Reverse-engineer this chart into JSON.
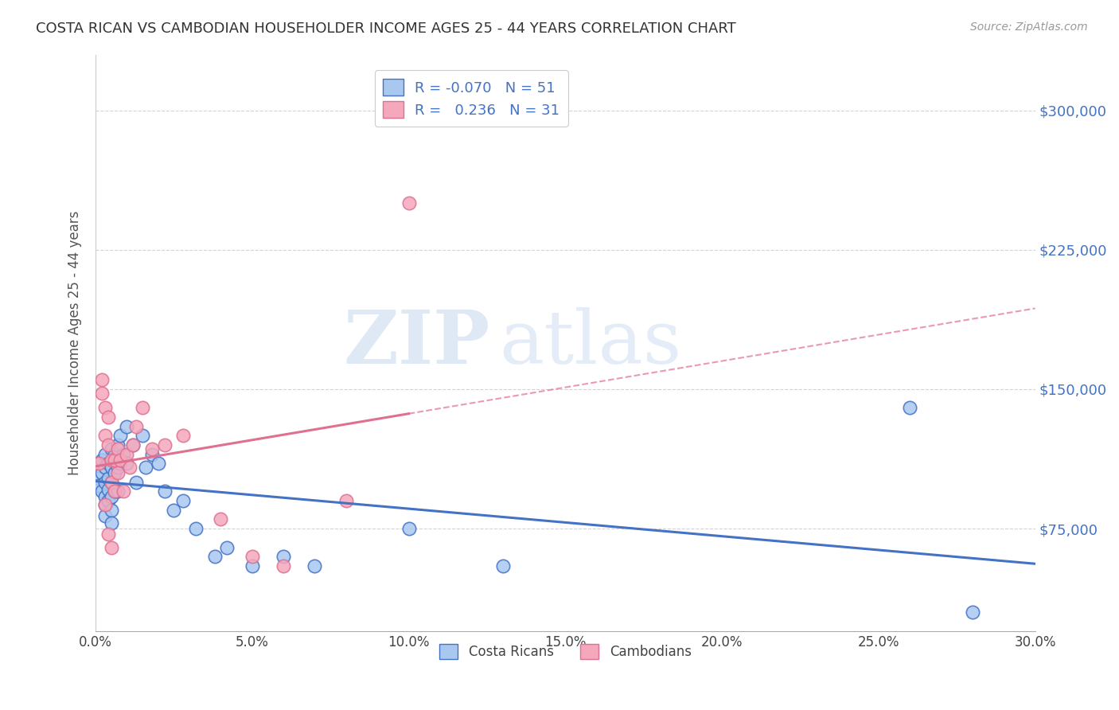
{
  "title": "COSTA RICAN VS CAMBODIAN HOUSEHOLDER INCOME AGES 25 - 44 YEARS CORRELATION CHART",
  "source": "Source: ZipAtlas.com",
  "ylabel": "Householder Income Ages 25 - 44 years",
  "ytick_values": [
    75000,
    150000,
    225000,
    300000
  ],
  "xlim": [
    0.0,
    0.3
  ],
  "ylim": [
    20000,
    330000
  ],
  "R_cr": -0.07,
  "N_cr": 51,
  "R_cam": 0.236,
  "N_cam": 31,
  "costa_rican_color": "#a8c8f0",
  "cambodian_color": "#f5a8bc",
  "costa_rican_line_color": "#4472c4",
  "cambodian_line_color": "#e07090",
  "watermark_zip": "ZIP",
  "watermark_atlas": "atlas",
  "background_color": "#ffffff",
  "grid_color": "#c8c8c8",
  "costa_ricans_x": [
    0.001,
    0.001,
    0.002,
    0.002,
    0.002,
    0.003,
    0.003,
    0.003,
    0.003,
    0.003,
    0.003,
    0.004,
    0.004,
    0.004,
    0.004,
    0.005,
    0.005,
    0.005,
    0.005,
    0.005,
    0.005,
    0.006,
    0.006,
    0.006,
    0.007,
    0.007,
    0.007,
    0.008,
    0.008,
    0.009,
    0.01,
    0.01,
    0.012,
    0.013,
    0.015,
    0.016,
    0.018,
    0.02,
    0.022,
    0.025,
    0.028,
    0.032,
    0.038,
    0.042,
    0.05,
    0.06,
    0.07,
    0.1,
    0.13,
    0.26,
    0.28
  ],
  "costa_ricans_y": [
    102000,
    98000,
    112000,
    105000,
    95000,
    115000,
    108000,
    100000,
    92000,
    88000,
    82000,
    110000,
    102000,
    96000,
    90000,
    118000,
    108000,
    100000,
    92000,
    85000,
    78000,
    115000,
    105000,
    95000,
    120000,
    108000,
    95000,
    125000,
    110000,
    115000,
    130000,
    110000,
    120000,
    100000,
    125000,
    108000,
    115000,
    110000,
    95000,
    85000,
    90000,
    75000,
    60000,
    65000,
    55000,
    60000,
    55000,
    75000,
    55000,
    140000,
    30000
  ],
  "cambodians_x": [
    0.001,
    0.002,
    0.002,
    0.003,
    0.003,
    0.003,
    0.004,
    0.004,
    0.004,
    0.005,
    0.005,
    0.005,
    0.006,
    0.006,
    0.007,
    0.007,
    0.008,
    0.009,
    0.01,
    0.011,
    0.012,
    0.013,
    0.015,
    0.018,
    0.022,
    0.028,
    0.04,
    0.05,
    0.06,
    0.08,
    0.1
  ],
  "cambodians_y": [
    110000,
    155000,
    148000,
    140000,
    125000,
    88000,
    135000,
    120000,
    72000,
    112000,
    100000,
    65000,
    112000,
    95000,
    118000,
    105000,
    112000,
    95000,
    115000,
    108000,
    120000,
    130000,
    140000,
    118000,
    120000,
    125000,
    80000,
    60000,
    55000,
    90000,
    250000
  ],
  "legend1_r": "-0.070",
  "legend1_n": "51",
  "legend2_r": "0.236",
  "legend2_n": "31"
}
